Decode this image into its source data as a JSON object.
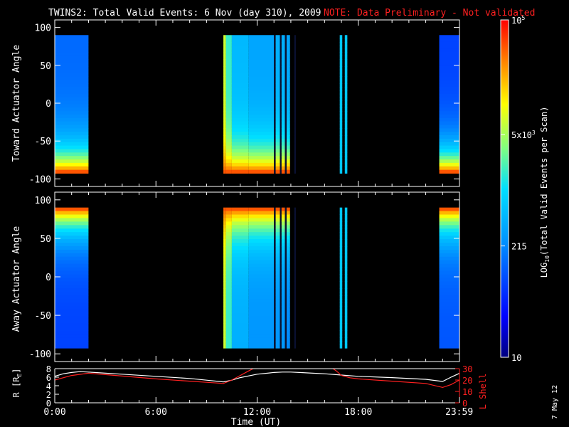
{
  "header": {
    "title": "TWINS2: Total Valid Events:  6 Nov (day 310), 2009",
    "note": "NOTE: Data Preliminary - Not validated"
  },
  "stamp": "7 May 12",
  "colors": {
    "background": "#000000",
    "axes": "#ffffff",
    "note": "#ff2020",
    "lshell": "#ff2020",
    "rcurve": "#ffffff"
  },
  "chart_data": [
    {
      "type": "heatmap",
      "id": "toward",
      "ylabel": "Toward Actuator Angle",
      "ylim": [
        -110,
        110
      ],
      "yticks": [
        100,
        50,
        0,
        -50,
        -100
      ],
      "xlim": [
        0,
        24
      ],
      "angle_range": [
        -88,
        90
      ],
      "gradient": "low_to_high_with_angle_descending",
      "segments": [
        {
          "start": 0.0,
          "end": 2.0,
          "base": 0.28
        },
        {
          "start": 10.0,
          "end": 10.15,
          "base": 0.7
        },
        {
          "start": 10.15,
          "end": 10.5,
          "base": 0.55
        },
        {
          "start": 10.5,
          "end": 11.5,
          "base": 0.42
        },
        {
          "start": 11.5,
          "end": 13.0,
          "base": 0.38
        },
        {
          "start": 13.0,
          "end": 13.1,
          "base": 0.05,
          "dark": true
        },
        {
          "start": 13.1,
          "end": 13.35,
          "base": 0.4
        },
        {
          "start": 13.35,
          "end": 13.45,
          "base": 0.05,
          "dark": true
        },
        {
          "start": 13.45,
          "end": 13.65,
          "base": 0.4
        },
        {
          "start": 13.65,
          "end": 13.75,
          "base": 0.05,
          "dark": true
        },
        {
          "start": 13.75,
          "end": 13.95,
          "base": 0.38
        },
        {
          "start": 14.2,
          "end": 14.3,
          "base": 0.05,
          "dark": true
        },
        {
          "start": 16.9,
          "end": 17.05,
          "base": 0.45,
          "flat": true
        },
        {
          "start": 17.2,
          "end": 17.35,
          "base": 0.45,
          "flat": true
        },
        {
          "start": 22.8,
          "end": 24.0,
          "base": 0.22
        }
      ]
    },
    {
      "type": "heatmap",
      "id": "away",
      "ylabel": "Away Actuator Angle",
      "ylim": [
        -110,
        110
      ],
      "yticks": [
        100,
        50,
        0,
        -50,
        -100
      ],
      "xlim": [
        0,
        24
      ],
      "angle_range": [
        -88,
        90
      ],
      "gradient": "high_at_top",
      "segments": [
        {
          "start": 0.0,
          "end": 2.0,
          "base": 0.22
        },
        {
          "start": 10.0,
          "end": 10.15,
          "base": 0.7
        },
        {
          "start": 10.15,
          "end": 10.5,
          "base": 0.55
        },
        {
          "start": 10.5,
          "end": 11.5,
          "base": 0.4
        },
        {
          "start": 11.5,
          "end": 13.0,
          "base": 0.35
        },
        {
          "start": 13.0,
          "end": 13.1,
          "base": 0.05,
          "dark": true
        },
        {
          "start": 13.1,
          "end": 13.35,
          "base": 0.35
        },
        {
          "start": 13.35,
          "end": 13.45,
          "base": 0.05,
          "dark": true
        },
        {
          "start": 13.45,
          "end": 13.65,
          "base": 0.35
        },
        {
          "start": 13.65,
          "end": 13.75,
          "base": 0.05,
          "dark": true
        },
        {
          "start": 13.75,
          "end": 13.95,
          "base": 0.33
        },
        {
          "start": 14.2,
          "end": 14.3,
          "base": 0.05,
          "dark": true
        },
        {
          "start": 16.9,
          "end": 17.05,
          "base": 0.45,
          "flat": true
        },
        {
          "start": 17.2,
          "end": 17.35,
          "base": 0.45,
          "flat": true
        },
        {
          "start": 22.8,
          "end": 24.0,
          "base": 0.25
        }
      ]
    },
    {
      "type": "line",
      "id": "orbit",
      "ylabel": "R [R",
      "ylabel_sub": "E",
      "ylabel_close": "]",
      "ylim": [
        0,
        8
      ],
      "yticks": [
        8,
        6,
        4,
        2,
        0
      ],
      "y2label": "L Shell",
      "y2lim": [
        0,
        30
      ],
      "y2ticks": [
        30,
        20,
        10,
        0
      ],
      "xlabel": "Time (UT)",
      "xticks": [
        "0:00",
        "6:00",
        "12:00",
        "18:00",
        "23:59"
      ],
      "xtick_values": [
        0,
        6,
        12,
        18,
        23.983
      ],
      "series": [
        {
          "axis": "left",
          "color": "#ffffff",
          "x": [
            0,
            0.5,
            1,
            1.5,
            2,
            4,
            6,
            8,
            9,
            10,
            10.5,
            11,
            12,
            13,
            13.5,
            14,
            14.5,
            15,
            16,
            17,
            18,
            20,
            22,
            23,
            23.5,
            24
          ],
          "y": [
            6.2,
            6.8,
            7.1,
            7.3,
            7.2,
            6.7,
            6.2,
            5.7,
            5.3,
            4.9,
            5.3,
            5.9,
            6.7,
            7.1,
            7.2,
            7.2,
            7.1,
            7.0,
            6.8,
            6.5,
            6.2,
            5.9,
            5.5,
            5.0,
            6.0,
            6.9
          ]
        },
        {
          "axis": "right",
          "color": "#ff2020",
          "x": [
            0,
            1,
            2,
            4,
            6,
            8,
            9,
            10,
            10.5,
            11,
            11.5,
            11.9
          ],
          "y": [
            20,
            24,
            26,
            23.5,
            21,
            19,
            18,
            17,
            20,
            24,
            28,
            31
          ]
        },
        {
          "axis": "right",
          "color": "#ff2020",
          "x": [
            16.4,
            16.7,
            17,
            17.5,
            18,
            20,
            22,
            23,
            23.5,
            24
          ],
          "y": [
            31,
            28,
            24,
            22,
            21,
            19,
            17,
            13.5,
            16,
            20
          ]
        }
      ]
    }
  ],
  "colorbar": {
    "label_prefix": "LOG",
    "label_sub": "10",
    "label_suffix": "(Total Valid Events per Scan)",
    "ticks": [
      {
        "base": "10",
        "exp": "5",
        "pos": 1.0
      },
      {
        "base": "5x10",
        "exp": "3",
        "pos": 0.66
      },
      {
        "base": "215",
        "exp": "",
        "pos": 0.33
      },
      {
        "base": "10",
        "exp": "",
        "pos": 0.0
      }
    ]
  }
}
